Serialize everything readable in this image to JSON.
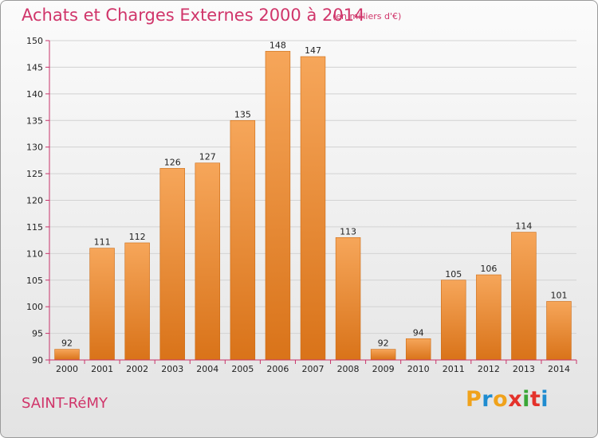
{
  "header": {
    "title": "Achats et Charges Externes 2000 à 2014",
    "subtitle": "(en milliers d'€)"
  },
  "footer": {
    "city": "SAINT-RéMY",
    "logo_letters": [
      "P",
      "r",
      "o",
      "x",
      "i",
      "t",
      "i"
    ],
    "logo_colors": [
      "#f0a21b",
      "#1f8cd0",
      "#f0a21b",
      "#e4322b",
      "#3aa637",
      "#e4322b",
      "#1f8cd0"
    ]
  },
  "colors": {
    "bar_top": "#f6a65a",
    "bar_bottom": "#d97319",
    "bar_stroke": "#cc6a12",
    "grid": "#d2d2d2",
    "axis": "#c8336a"
  },
  "chart_data": {
    "type": "bar",
    "categories": [
      "2000",
      "2001",
      "2002",
      "2003",
      "2004",
      "2005",
      "2006",
      "2007",
      "2008",
      "2009",
      "2010",
      "2011",
      "2012",
      "2013",
      "2014"
    ],
    "values": [
      92,
      111,
      112,
      126,
      127,
      135,
      148,
      147,
      113,
      92,
      94,
      105,
      106,
      114,
      101
    ],
    "title": "Achats et Charges Externes 2000 à 2014",
    "subtitle": "(en milliers d'€)",
    "xlabel": "",
    "ylabel": "",
    "ylim": [
      90,
      150
    ],
    "yticks": [
      90,
      95,
      100,
      105,
      110,
      115,
      120,
      125,
      130,
      135,
      140,
      145,
      150
    ],
    "grid": true
  }
}
